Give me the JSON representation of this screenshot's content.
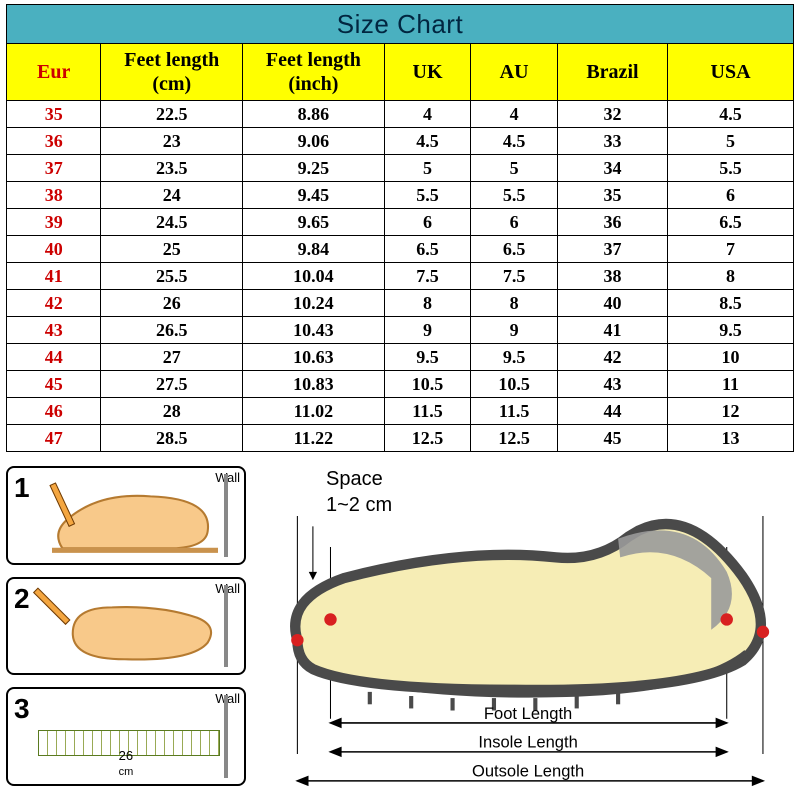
{
  "title": "Size Chart",
  "columns": [
    "Eur",
    "Feet length (cm)",
    "Feet length (inch)",
    "UK",
    "AU",
    "Brazil",
    "USA"
  ],
  "rows": [
    [
      "35",
      "22.5",
      "8.86",
      "4",
      "4",
      "32",
      "4.5"
    ],
    [
      "36",
      "23",
      "9.06",
      "4.5",
      "4.5",
      "33",
      "5"
    ],
    [
      "37",
      "23.5",
      "9.25",
      "5",
      "5",
      "34",
      "5.5"
    ],
    [
      "38",
      "24",
      "9.45",
      "5.5",
      "5.5",
      "35",
      "6"
    ],
    [
      "39",
      "24.5",
      "9.65",
      "6",
      "6",
      "36",
      "6.5"
    ],
    [
      "40",
      "25",
      "9.84",
      "6.5",
      "6.5",
      "37",
      "7"
    ],
    [
      "41",
      "25.5",
      "10.04",
      "7.5",
      "7.5",
      "38",
      "8"
    ],
    [
      "42",
      "26",
      "10.24",
      "8",
      "8",
      "40",
      "8.5"
    ],
    [
      "43",
      "26.5",
      "10.43",
      "9",
      "9",
      "41",
      "9.5"
    ],
    [
      "44",
      "27",
      "10.63",
      "9.5",
      "9.5",
      "42",
      "10"
    ],
    [
      "45",
      "27.5",
      "10.83",
      "10.5",
      "10.5",
      "43",
      "11"
    ],
    [
      "46",
      "28",
      "11.02",
      "11.5",
      "11.5",
      "44",
      "12"
    ],
    [
      "47",
      "28.5",
      "11.22",
      "12.5",
      "12.5",
      "45",
      "13"
    ]
  ],
  "colors": {
    "title_bg": "#4ab0c0",
    "title_text": "#012640",
    "header_bg": "#ffff00",
    "eur_text": "#cc0000",
    "border": "#000000",
    "shoe_outline": "#4a4a4a",
    "shoe_fill": "#f6edb5",
    "foot_fill": "#f8c98a",
    "foot_stroke": "#b57a30"
  },
  "fontsizes": {
    "title": 26,
    "header": 20,
    "cell": 18
  },
  "steps": {
    "wall_label": "Wall",
    "step1": "1",
    "step2": "2",
    "step3": "3",
    "ruler_mark": "26",
    "ruler_unit": "cm"
  },
  "shoe": {
    "space_label_line1": "Space",
    "space_label_line2": "1~2 cm",
    "foot_length": "Foot Length",
    "insole_length": "Insole Length",
    "outsole_length": "Outsole Length"
  }
}
